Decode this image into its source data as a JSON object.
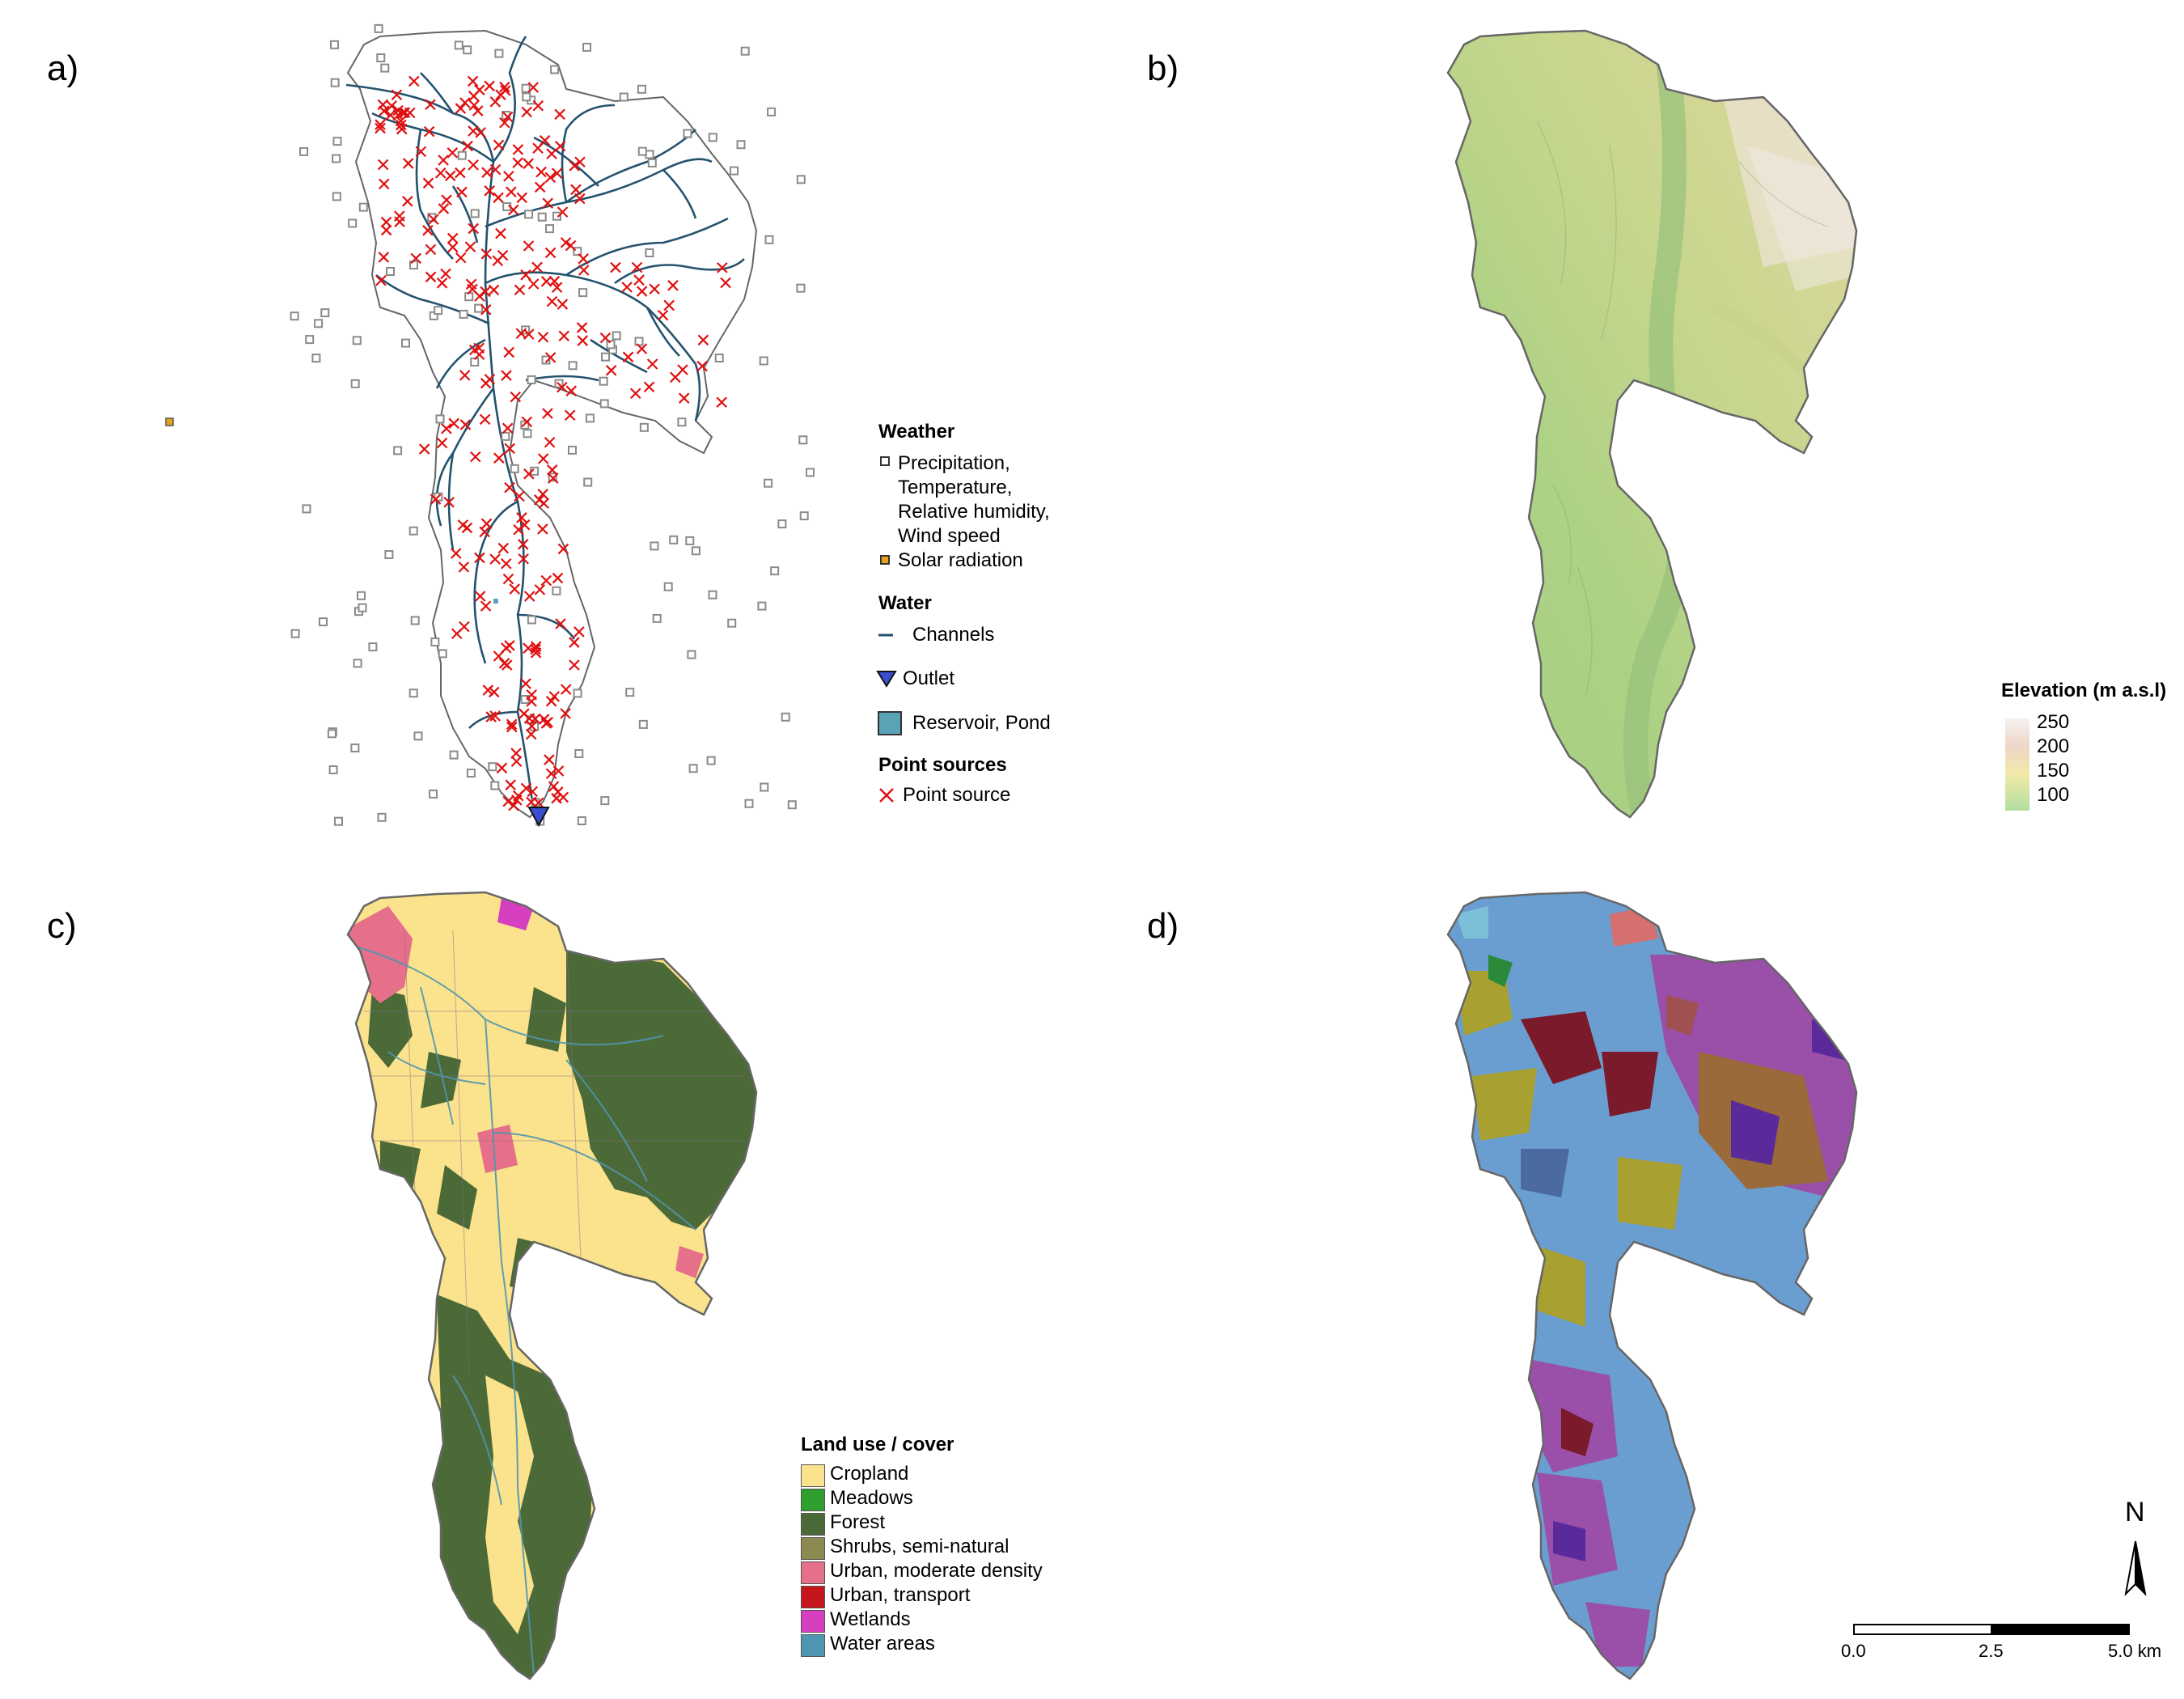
{
  "panels": {
    "a": {
      "label": "a)"
    },
    "b": {
      "label": "b)"
    },
    "c": {
      "label": "c)"
    },
    "d": {
      "label": "d)"
    }
  },
  "legend_a": {
    "weather_title": "Weather",
    "weather_items": [
      "Precipitation,",
      "Temperature,",
      "Relative humidity,",
      "Wind speed"
    ],
    "solar_label": "Solar radiation",
    "water_title": "Water",
    "channels_label": "Channels",
    "outlet_label": "Outlet",
    "reservoir_label": "Reservoir, Pond",
    "point_title": "Point sources",
    "point_label": "Point source"
  },
  "legend_b": {
    "title": "Elevation (m a.s.l)",
    "ticks": [
      "250",
      "200",
      "150",
      "100"
    ],
    "colors": [
      "#f4f1f0",
      "#ecd2c5",
      "#f1e7a6",
      "#b5e0a0"
    ]
  },
  "legend_c": {
    "title": "Land use / cover",
    "items": [
      {
        "label": "Cropland",
        "color": "#fbe28c"
      },
      {
        "label": "Meadows",
        "color": "#2fa02f"
      },
      {
        "label": "Forest",
        "color": "#4c6a37"
      },
      {
        "label": "Shrubs, semi-natural",
        "color": "#8c8a50"
      },
      {
        "label": "Urban, moderate density",
        "color": "#e6708a"
      },
      {
        "label": "Urban, transport",
        "color": "#c4161c"
      },
      {
        "label": "Wetlands",
        "color": "#d63fbf"
      },
      {
        "label": "Water areas",
        "color": "#4f96b0"
      }
    ]
  },
  "north_arrow": {
    "label": "N"
  },
  "scalebar": {
    "ticks": [
      "0.0",
      "2.5",
      "5.0 km"
    ]
  },
  "colors": {
    "station": "#8a8a8a",
    "solar": "#e8a01a",
    "channel": "#24526e",
    "outlet": "#3a4fd0",
    "reservoir": "#5aa3b7",
    "point_source": "#e01010",
    "boundary": "#666666"
  }
}
